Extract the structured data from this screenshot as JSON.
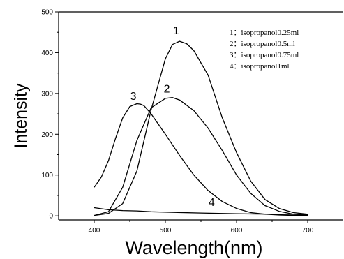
{
  "chart_data": {
    "type": "line",
    "title": "",
    "xlabel": "Wavelength(nm)",
    "ylabel": "Intensity",
    "xlim": [
      350,
      750
    ],
    "ylim": [
      -10,
      500
    ],
    "x_ticks": [
      400,
      500,
      600,
      700
    ],
    "y_ticks": [
      0,
      100,
      200,
      300,
      400,
      500
    ],
    "grid": false,
    "legend_position": "top-right",
    "legend": [
      "1：isopropanol0.25ml",
      "2：isopropanol0.5ml",
      "3：isopropanol0.75ml",
      "4：isopropanol1ml"
    ],
    "series": [
      {
        "label": "1",
        "x": [
          400,
          420,
          440,
          460,
          480,
          500,
          510,
          520,
          530,
          540,
          560,
          580,
          600,
          620,
          640,
          660,
          680,
          700
        ],
        "y": [
          1,
          6,
          30,
          110,
          260,
          385,
          420,
          428,
          422,
          405,
          345,
          240,
          155,
          85,
          40,
          18,
          8,
          4
        ]
      },
      {
        "label": "2",
        "x": [
          400,
          420,
          440,
          460,
          480,
          500,
          510,
          520,
          540,
          560,
          580,
          600,
          620,
          640,
          660,
          680,
          700
        ],
        "y": [
          1,
          10,
          70,
          185,
          265,
          288,
          290,
          284,
          258,
          215,
          160,
          100,
          55,
          25,
          11,
          4,
          2
        ]
      },
      {
        "label": "3",
        "x": [
          400,
          410,
          420,
          430,
          440,
          450,
          460,
          465,
          470,
          480,
          500,
          520,
          540,
          560,
          580,
          600,
          620,
          640,
          660,
          680,
          700
        ],
        "y": [
          70,
          95,
          135,
          190,
          240,
          268,
          275,
          274,
          270,
          250,
          200,
          148,
          100,
          62,
          35,
          18,
          8,
          4,
          2,
          1,
          1
        ]
      },
      {
        "label": "4",
        "x": [
          400,
          420,
          440,
          460,
          480,
          500,
          550,
          600,
          650,
          700
        ],
        "y": [
          20,
          15,
          13,
          12,
          10,
          9,
          7,
          5,
          4,
          3
        ]
      }
    ]
  }
}
